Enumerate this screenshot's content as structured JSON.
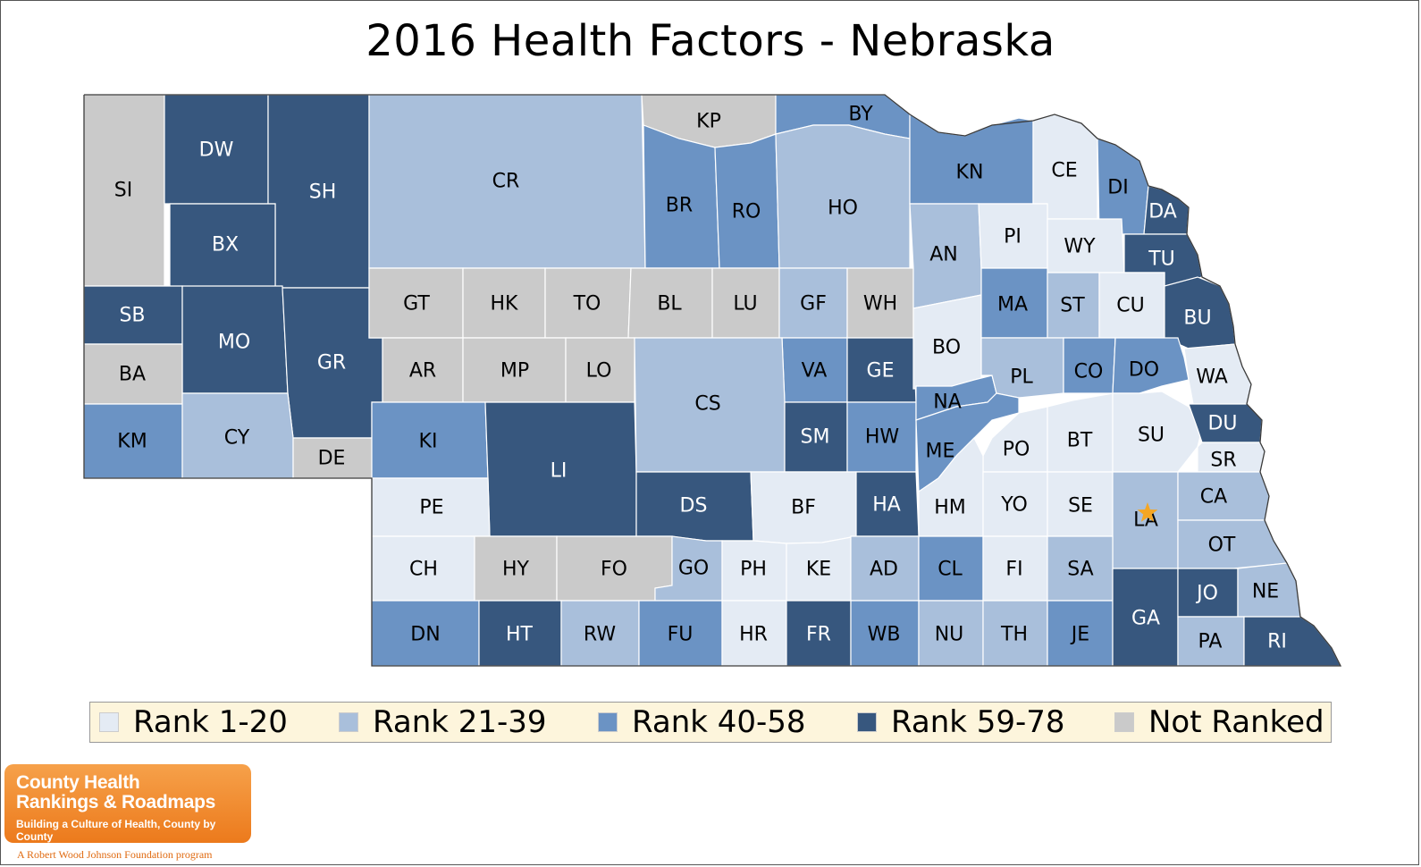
{
  "title": "2016 Health Factors - Nebraska",
  "colors": {
    "rank_1_20": "#e4ebf4",
    "rank_21_39": "#a9bfdb",
    "rank_40_58": "#6b93c4",
    "rank_59_78": "#37577e",
    "not_ranked": "#cacaca",
    "star": "#f5a623"
  },
  "legend": [
    {
      "key": "rank_1_20",
      "label": "Rank 1-20"
    },
    {
      "key": "rank_21_39",
      "label": "Rank 21-39"
    },
    {
      "key": "rank_40_58",
      "label": "Rank 40-58"
    },
    {
      "key": "rank_59_78",
      "label": "Rank 59-78"
    },
    {
      "key": "not_ranked",
      "label": "Not Ranked"
    }
  ],
  "counties": [
    {
      "abbr": "SI",
      "cls": "not_ranked"
    },
    {
      "abbr": "DW",
      "cls": "rank_59_78"
    },
    {
      "abbr": "SH",
      "cls": "rank_59_78"
    },
    {
      "abbr": "CR",
      "cls": "rank_21_39"
    },
    {
      "abbr": "KP",
      "cls": "not_ranked"
    },
    {
      "abbr": "BY",
      "cls": "rank_40_58"
    },
    {
      "abbr": "BX",
      "cls": "rank_59_78"
    },
    {
      "abbr": "BR",
      "cls": "rank_40_58"
    },
    {
      "abbr": "RO",
      "cls": "rank_40_58"
    },
    {
      "abbr": "HO",
      "cls": "rank_21_39"
    },
    {
      "abbr": "KN",
      "cls": "rank_40_58"
    },
    {
      "abbr": "CE",
      "cls": "rank_1_20"
    },
    {
      "abbr": "DI",
      "cls": "rank_40_58"
    },
    {
      "abbr": "DA",
      "cls": "rank_59_78"
    },
    {
      "abbr": "SB",
      "cls": "rank_59_78"
    },
    {
      "abbr": "MO",
      "cls": "rank_59_78"
    },
    {
      "abbr": "GR",
      "cls": "rank_59_78"
    },
    {
      "abbr": "GT",
      "cls": "not_ranked"
    },
    {
      "abbr": "HK",
      "cls": "not_ranked"
    },
    {
      "abbr": "TO",
      "cls": "not_ranked"
    },
    {
      "abbr": "BL",
      "cls": "not_ranked"
    },
    {
      "abbr": "LU",
      "cls": "not_ranked"
    },
    {
      "abbr": "GF",
      "cls": "rank_21_39"
    },
    {
      "abbr": "WH",
      "cls": "not_ranked"
    },
    {
      "abbr": "AN",
      "cls": "rank_21_39"
    },
    {
      "abbr": "PI",
      "cls": "rank_1_20"
    },
    {
      "abbr": "WY",
      "cls": "rank_1_20"
    },
    {
      "abbr": "TU",
      "cls": "rank_59_78"
    },
    {
      "abbr": "BA",
      "cls": "not_ranked"
    },
    {
      "abbr": "AR",
      "cls": "not_ranked"
    },
    {
      "abbr": "MP",
      "cls": "not_ranked"
    },
    {
      "abbr": "LO",
      "cls": "not_ranked"
    },
    {
      "abbr": "VA",
      "cls": "rank_40_58"
    },
    {
      "abbr": "GE",
      "cls": "rank_59_78"
    },
    {
      "abbr": "BO",
      "cls": "rank_1_20"
    },
    {
      "abbr": "MA",
      "cls": "rank_40_58"
    },
    {
      "abbr": "ST",
      "cls": "rank_21_39"
    },
    {
      "abbr": "CU",
      "cls": "rank_1_20"
    },
    {
      "abbr": "BU",
      "cls": "rank_59_78"
    },
    {
      "abbr": "KM",
      "cls": "rank_40_58"
    },
    {
      "abbr": "CY",
      "cls": "rank_21_39"
    },
    {
      "abbr": "DE",
      "cls": "not_ranked"
    },
    {
      "abbr": "KI",
      "cls": "rank_40_58"
    },
    {
      "abbr": "LI",
      "cls": "rank_59_78"
    },
    {
      "abbr": "CS",
      "cls": "rank_21_39"
    },
    {
      "abbr": "SM",
      "cls": "rank_59_78"
    },
    {
      "abbr": "HW",
      "cls": "rank_40_58"
    },
    {
      "abbr": "NA",
      "cls": "rank_40_58"
    },
    {
      "abbr": "PL",
      "cls": "rank_21_39"
    },
    {
      "abbr": "CO",
      "cls": "rank_40_58"
    },
    {
      "abbr": "DO",
      "cls": "rank_40_58"
    },
    {
      "abbr": "WA",
      "cls": "rank_1_20"
    },
    {
      "abbr": "PE",
      "cls": "rank_1_20"
    },
    {
      "abbr": "DS",
      "cls": "rank_59_78"
    },
    {
      "abbr": "BF",
      "cls": "rank_1_20"
    },
    {
      "abbr": "HA",
      "cls": "rank_59_78"
    },
    {
      "abbr": "ME",
      "cls": "rank_40_58"
    },
    {
      "abbr": "PO",
      "cls": "rank_1_20"
    },
    {
      "abbr": "BT",
      "cls": "rank_1_20"
    },
    {
      "abbr": "SU",
      "cls": "rank_1_20"
    },
    {
      "abbr": "DU",
      "cls": "rank_59_78"
    },
    {
      "abbr": "SR",
      "cls": "rank_1_20"
    },
    {
      "abbr": "HM",
      "cls": "rank_1_20"
    },
    {
      "abbr": "YO",
      "cls": "rank_1_20"
    },
    {
      "abbr": "SE",
      "cls": "rank_1_20"
    },
    {
      "abbr": "LA",
      "cls": "rank_21_39"
    },
    {
      "abbr": "CA",
      "cls": "rank_21_39"
    },
    {
      "abbr": "CH",
      "cls": "rank_1_20"
    },
    {
      "abbr": "HY",
      "cls": "not_ranked"
    },
    {
      "abbr": "FO",
      "cls": "not_ranked"
    },
    {
      "abbr": "GO",
      "cls": "rank_21_39"
    },
    {
      "abbr": "PH",
      "cls": "rank_1_20"
    },
    {
      "abbr": "KE",
      "cls": "rank_1_20"
    },
    {
      "abbr": "AD",
      "cls": "rank_21_39"
    },
    {
      "abbr": "CL",
      "cls": "rank_40_58"
    },
    {
      "abbr": "FI",
      "cls": "rank_1_20"
    },
    {
      "abbr": "SA",
      "cls": "rank_21_39"
    },
    {
      "abbr": "OT",
      "cls": "rank_21_39"
    },
    {
      "abbr": "DN",
      "cls": "rank_40_58"
    },
    {
      "abbr": "HT",
      "cls": "rank_59_78"
    },
    {
      "abbr": "RW",
      "cls": "rank_21_39"
    },
    {
      "abbr": "FU",
      "cls": "rank_40_58"
    },
    {
      "abbr": "HR",
      "cls": "rank_1_20"
    },
    {
      "abbr": "FR",
      "cls": "rank_59_78"
    },
    {
      "abbr": "WB",
      "cls": "rank_40_58"
    },
    {
      "abbr": "NU",
      "cls": "rank_21_39"
    },
    {
      "abbr": "TH",
      "cls": "rank_21_39"
    },
    {
      "abbr": "JE",
      "cls": "rank_40_58"
    },
    {
      "abbr": "GA",
      "cls": "rank_59_78"
    },
    {
      "abbr": "JO",
      "cls": "rank_59_78"
    },
    {
      "abbr": "NE",
      "cls": "rank_21_39"
    },
    {
      "abbr": "PA",
      "cls": "rank_21_39"
    },
    {
      "abbr": "RI",
      "cls": "rank_59_78"
    }
  ],
  "logo": {
    "line1": "County Health",
    "line2": "Rankings & Roadmaps",
    "tagline": "Building a Culture of Health, County by County",
    "foot": "A Robert Wood Johnson Foundation program"
  }
}
